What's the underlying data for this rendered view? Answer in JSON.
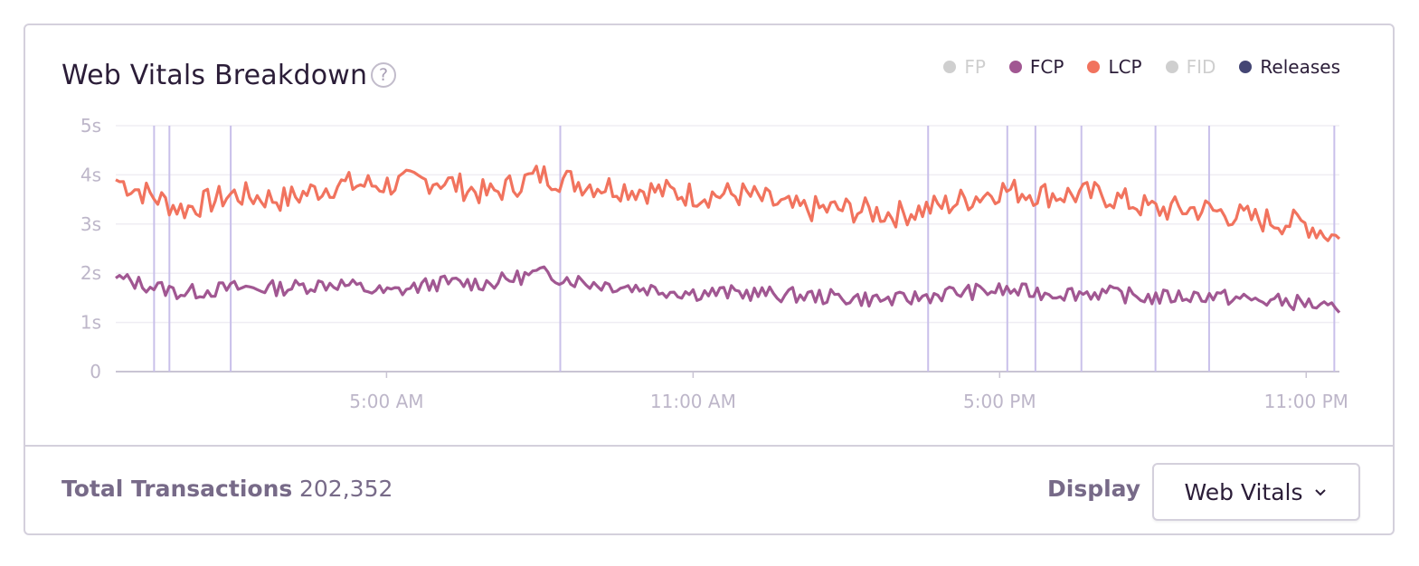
{
  "panel": {
    "title": "Web Vitals Breakdown",
    "help_icon": "question-circle-icon"
  },
  "legend": [
    {
      "label": "FP",
      "color": "#cfcfcf",
      "active": false
    },
    {
      "label": "FCP",
      "color": "#a15792",
      "active": true
    },
    {
      "label": "LCP",
      "color": "#f1735e",
      "active": true
    },
    {
      "label": "FID",
      "color": "#cfcfcf",
      "active": false
    },
    {
      "label": "Releases",
      "color": "#444674",
      "active": true
    }
  ],
  "footer": {
    "total_label": "Total Transactions",
    "total_value": "202,352",
    "display_label": "Display",
    "display_value": "Web Vitals",
    "display_icon": "chevron-down-icon"
  },
  "chart_data": {
    "type": "line",
    "ylabel": "",
    "xlabel": "",
    "ylim": [
      0,
      5
    ],
    "y_ticks": [
      "0",
      "1s",
      "2s",
      "3s",
      "4s",
      "5s"
    ],
    "x_ticks": [
      {
        "label": "5:00 AM",
        "hour": 5
      },
      {
        "label": "11:00 AM",
        "hour": 11
      },
      {
        "label": "5:00 PM",
        "hour": 17
      },
      {
        "label": "11:00 PM",
        "hour": 23
      }
    ],
    "x_range_hours": [
      -0.3,
      23.65
    ],
    "grid": true,
    "legend_position": "top-right",
    "series": [
      {
        "name": "LCP",
        "color": "#f1735e",
        "x_hours": [
          -0.3,
          1.0,
          2.0,
          3.0,
          4.0,
          5.0,
          6.0,
          7.0,
          8.0,
          9.0,
          10.0,
          11.0,
          12.0,
          13.0,
          14.0,
          15.0,
          16.0,
          17.0,
          18.0,
          19.0,
          20.0,
          21.0,
          22.0,
          23.0,
          23.65
        ],
        "values": [
          3.9,
          3.3,
          3.6,
          3.5,
          3.8,
          3.8,
          3.9,
          3.6,
          4.0,
          3.8,
          3.7,
          3.6,
          3.6,
          3.3,
          3.3,
          3.2,
          3.4,
          3.7,
          3.6,
          3.6,
          3.3,
          3.3,
          3.1,
          3.0,
          2.7
        ]
      },
      {
        "name": "FCP",
        "color": "#a15792",
        "x_hours": [
          -0.3,
          1.0,
          2.0,
          3.0,
          4.0,
          5.0,
          6.0,
          7.0,
          8.0,
          9.0,
          10.0,
          11.0,
          12.0,
          13.0,
          14.0,
          15.0,
          16.0,
          17.0,
          18.0,
          19.0,
          20.0,
          21.0,
          22.0,
          23.0,
          23.65
        ],
        "values": [
          1.9,
          1.6,
          1.7,
          1.7,
          1.8,
          1.6,
          1.8,
          1.8,
          2.0,
          1.8,
          1.7,
          1.6,
          1.6,
          1.55,
          1.5,
          1.45,
          1.6,
          1.65,
          1.6,
          1.6,
          1.5,
          1.55,
          1.45,
          1.4,
          1.2
        ]
      }
    ],
    "releases": {
      "name": "Releases",
      "color": "#c9c0ea",
      "x_hours": [
        0.45,
        0.75,
        1.95,
        8.4,
        15.6,
        17.15,
        17.7,
        18.6,
        20.05,
        21.1,
        23.55
      ]
    }
  }
}
